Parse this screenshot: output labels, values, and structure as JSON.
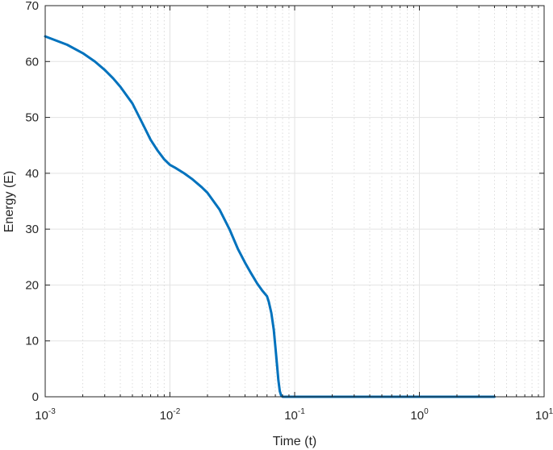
{
  "chart_data": {
    "type": "line",
    "xlabel": "Time (t)",
    "ylabel": "Energy (E)",
    "xscale": "log",
    "xlim": [
      0.001,
      10
    ],
    "ylim": [
      0,
      70
    ],
    "x_ticks": [
      {
        "base": "10",
        "exp": "-3",
        "value": 0.001
      },
      {
        "base": "10",
        "exp": "-2",
        "value": 0.01
      },
      {
        "base": "10",
        "exp": "-1",
        "value": 0.1
      },
      {
        "base": "10",
        "exp": "0",
        "value": 1
      },
      {
        "base": "10",
        "exp": "1",
        "value": 10
      }
    ],
    "y_ticks": [
      "0",
      "10",
      "20",
      "30",
      "40",
      "50",
      "60",
      "70"
    ],
    "grid": true,
    "minor_grid": true,
    "line_color": "#0072BD",
    "series": [
      {
        "x": [
          0.001,
          0.0015,
          0.002,
          0.0025,
          0.003,
          0.0035,
          0.004,
          0.005,
          0.006,
          0.007,
          0.008,
          0.009,
          0.01,
          0.011,
          0.013,
          0.015,
          0.018,
          0.02,
          0.025,
          0.03,
          0.035,
          0.04,
          0.045,
          0.05,
          0.055,
          0.06,
          0.062,
          0.065,
          0.068,
          0.07,
          0.072,
          0.074,
          0.076,
          0.078,
          0.08,
          0.082,
          0.085,
          0.1,
          0.2,
          0.5,
          1,
          2,
          4
        ],
        "y": [
          64.5,
          63.0,
          61.5,
          60.0,
          58.5,
          57.0,
          55.5,
          52.5,
          49.0,
          46.0,
          44.0,
          42.5,
          41.5,
          41.0,
          40.0,
          39.0,
          37.5,
          36.5,
          33.5,
          30.0,
          26.5,
          24.0,
          22.0,
          20.3,
          19.0,
          18.0,
          17.0,
          15.0,
          12.0,
          9.0,
          6.0,
          3.0,
          1.0,
          0.2,
          0.0,
          0.0,
          0.0,
          0.0,
          0.0,
          0.0,
          0.0,
          0.0,
          0.0
        ]
      }
    ]
  }
}
